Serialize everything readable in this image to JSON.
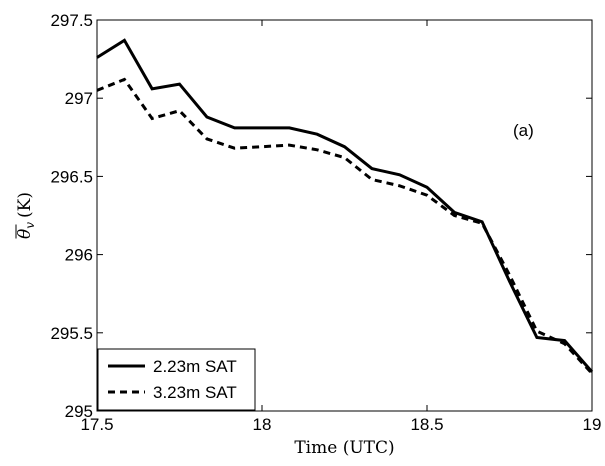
{
  "chart_data": {
    "type": "line",
    "title": "",
    "xlabel": "Time (UTC)",
    "ylabel": "θ̄_v (K)",
    "ylabel_parts": {
      "symbol": "θ",
      "subscript": "v",
      "unit": "(K)"
    },
    "xlim": [
      17.5,
      19
    ],
    "ylim": [
      295,
      297.5
    ],
    "xticks": [
      17.5,
      18,
      18.5,
      19
    ],
    "xtick_labels": [
      "17.5",
      "18",
      "18.5",
      "19"
    ],
    "yticks": [
      295,
      295.5,
      296,
      296.5,
      297,
      297.5
    ],
    "ytick_labels": [
      "295",
      "295.5",
      "296",
      "296.5",
      "297",
      "297.5"
    ],
    "grid": false,
    "legend_position": "bottom-left",
    "annotation": "(a)",
    "series": [
      {
        "name": "2.23m SAT",
        "style": "solid",
        "color": "#000000",
        "x": [
          17.5,
          17.583,
          17.667,
          17.75,
          17.833,
          17.917,
          18.0,
          18.083,
          18.167,
          18.25,
          18.333,
          18.417,
          18.5,
          18.583,
          18.667,
          18.75,
          18.833,
          18.917,
          19.0
        ],
        "y": [
          297.26,
          297.37,
          297.06,
          297.09,
          296.88,
          296.81,
          296.81,
          296.81,
          296.77,
          296.69,
          296.55,
          296.51,
          296.43,
          296.27,
          296.21,
          295.83,
          295.47,
          295.45,
          295.25
        ]
      },
      {
        "name": "3.23m SAT",
        "style": "dashed",
        "color": "#000000",
        "x": [
          17.5,
          17.583,
          17.667,
          17.75,
          17.833,
          17.917,
          18.0,
          18.083,
          18.167,
          18.25,
          18.333,
          18.417,
          18.5,
          18.583,
          18.667,
          18.75,
          18.833,
          18.917,
          19.0
        ],
        "y": [
          297.05,
          297.12,
          296.87,
          296.92,
          296.74,
          296.68,
          296.69,
          296.7,
          296.67,
          296.62,
          296.48,
          296.44,
          296.38,
          296.25,
          296.2,
          295.87,
          295.51,
          295.43,
          295.24
        ]
      }
    ]
  }
}
